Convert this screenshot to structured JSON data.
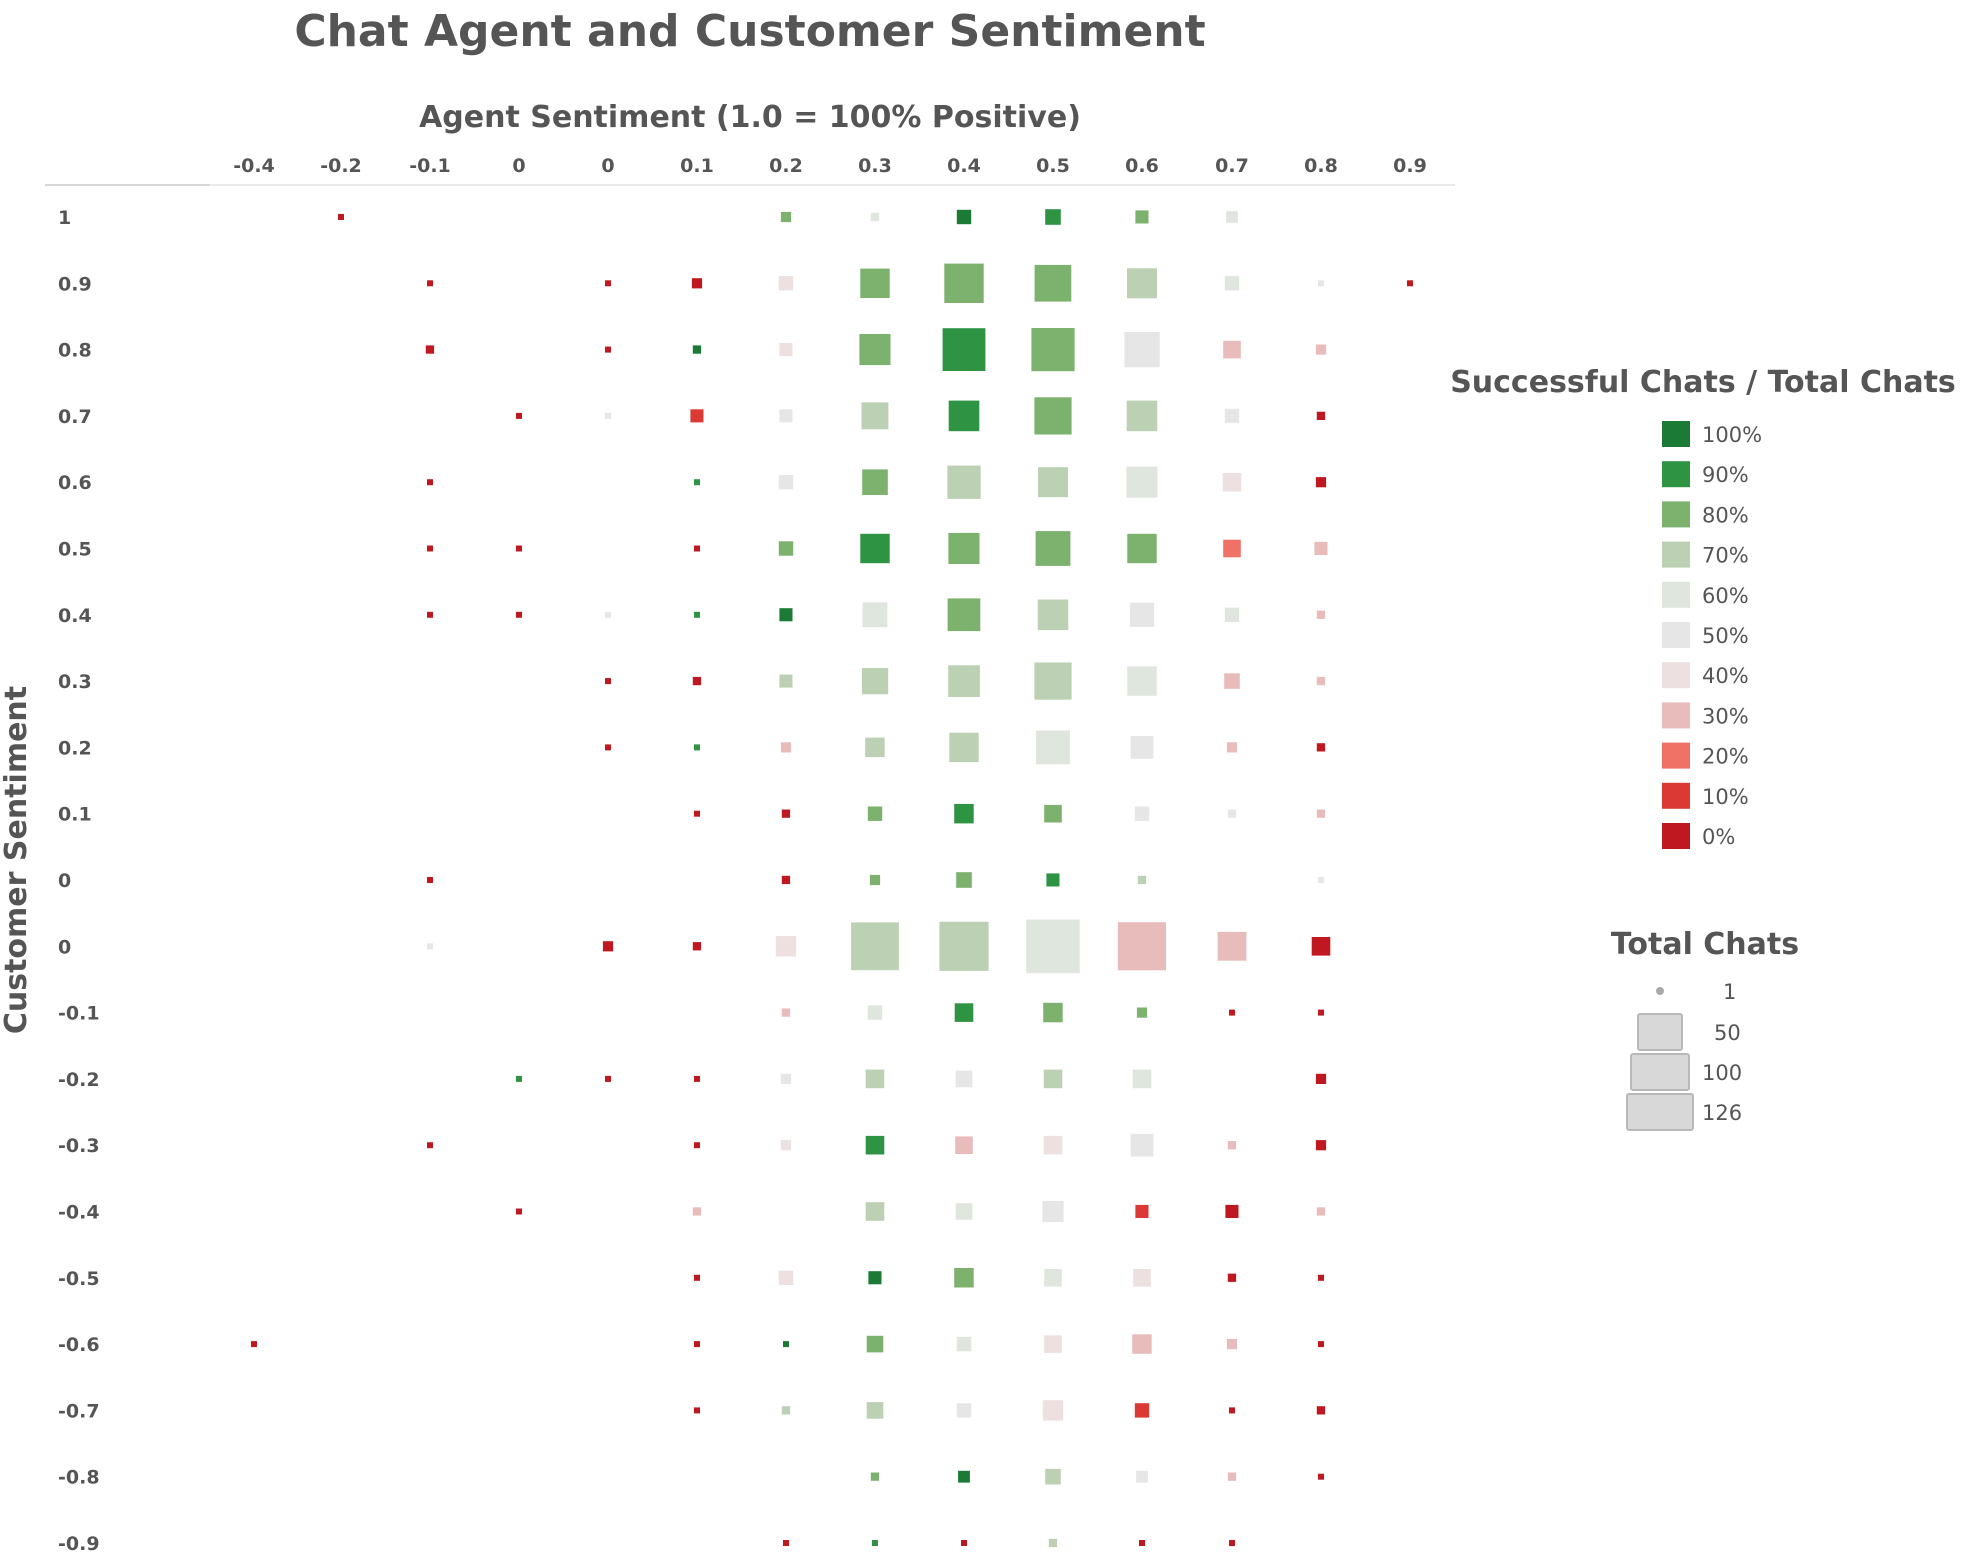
{
  "colors": {
    "100": "#1b7a36",
    "90": "#2e9444",
    "80": "#7cb16e",
    "70": "#bcd1b4",
    "60": "#dfe6dd",
    "50": "#e6e6e6",
    "40": "#ece0e0",
    "30": "#e9bcbc",
    "20": "#f07266",
    "10": "#da3a33",
    "0": "#c01820",
    "title": "#555555",
    "axis_line": "#d0d0d0",
    "legend_size": "#d8d8d8"
  },
  "chart_data": {
    "type": "heatmap",
    "title": "Chat Agent and Customer Sentiment",
    "xlabel": "Agent Sentiment (1.0 = 100% Positive)",
    "ylabel": "Customer Sentiment",
    "x_categories": [
      "-0.4",
      "-0.2",
      "-0.1",
      "0",
      "0",
      "0.1",
      "0.2",
      "0.3",
      "0.4",
      "0.5",
      "0.6",
      "0.7",
      "0.8",
      "0.9"
    ],
    "y_categories": [
      "1",
      "0.9",
      "0.8",
      "0.7",
      "0.6",
      "0.5",
      "0.4",
      "0.3",
      "0.2",
      "0.1",
      "0",
      "0",
      "-0.1",
      "-0.2",
      "-0.3",
      "-0.4",
      "-0.5",
      "-0.6",
      "-0.7",
      "-0.8",
      "-0.9"
    ],
    "color_metric": "Successful Chats / Total Chats",
    "size_metric": "Total Chats",
    "color_legend": [
      "100%",
      "90%",
      "80%",
      "70%",
      "60%",
      "50%",
      "40%",
      "30%",
      "20%",
      "10%",
      "0%"
    ],
    "size_legend": [
      {
        "label": "1",
        "value": 1
      },
      {
        "label": "50",
        "value": 50
      },
      {
        "label": "100",
        "value": 100
      },
      {
        "label": "126",
        "value": 126
      }
    ],
    "cells": [
      {
        "x": 1,
        "y": 0,
        "total": 1,
        "success_pct": 0
      },
      {
        "x": 6,
        "y": 0,
        "total": 3,
        "success_pct": 80
      },
      {
        "x": 7,
        "y": 0,
        "total": 2,
        "success_pct": 60
      },
      {
        "x": 8,
        "y": 0,
        "total": 6,
        "success_pct": 100
      },
      {
        "x": 9,
        "y": 0,
        "total": 7,
        "success_pct": 90
      },
      {
        "x": 10,
        "y": 0,
        "total": 5,
        "success_pct": 80
      },
      {
        "x": 11,
        "y": 0,
        "total": 4,
        "success_pct": 60
      },
      {
        "x": 2,
        "y": 1,
        "total": 1,
        "success_pct": 0
      },
      {
        "x": 4,
        "y": 1,
        "total": 1,
        "success_pct": 0
      },
      {
        "x": 5,
        "y": 1,
        "total": 3,
        "success_pct": 0
      },
      {
        "x": 6,
        "y": 1,
        "total": 6,
        "success_pct": 40
      },
      {
        "x": 7,
        "y": 1,
        "total": 25,
        "success_pct": 80
      },
      {
        "x": 8,
        "y": 1,
        "total": 45,
        "success_pct": 80
      },
      {
        "x": 9,
        "y": 1,
        "total": 39,
        "success_pct": 80
      },
      {
        "x": 10,
        "y": 1,
        "total": 26,
        "success_pct": 70
      },
      {
        "x": 11,
        "y": 1,
        "total": 6,
        "success_pct": 60
      },
      {
        "x": 12,
        "y": 1,
        "total": 1,
        "success_pct": 50
      },
      {
        "x": 13,
        "y": 1,
        "total": 1,
        "success_pct": 0
      },
      {
        "x": 2,
        "y": 2,
        "total": 2,
        "success_pct": 0
      },
      {
        "x": 4,
        "y": 2,
        "total": 1,
        "success_pct": 0
      },
      {
        "x": 5,
        "y": 2,
        "total": 2,
        "success_pct": 100
      },
      {
        "x": 6,
        "y": 2,
        "total": 5,
        "success_pct": 40
      },
      {
        "x": 7,
        "y": 2,
        "total": 28,
        "success_pct": 80
      },
      {
        "x": 8,
        "y": 2,
        "total": 53,
        "success_pct": 90
      },
      {
        "x": 9,
        "y": 2,
        "total": 54,
        "success_pct": 80
      },
      {
        "x": 10,
        "y": 2,
        "total": 36,
        "success_pct": 50
      },
      {
        "x": 11,
        "y": 2,
        "total": 9,
        "success_pct": 30
      },
      {
        "x": 12,
        "y": 2,
        "total": 3,
        "success_pct": 30
      },
      {
        "x": 3,
        "y": 3,
        "total": 1,
        "success_pct": 0
      },
      {
        "x": 4,
        "y": 3,
        "total": 1,
        "success_pct": 50
      },
      {
        "x": 5,
        "y": 3,
        "total": 5,
        "success_pct": 10
      },
      {
        "x": 6,
        "y": 3,
        "total": 5,
        "success_pct": 50
      },
      {
        "x": 7,
        "y": 3,
        "total": 21,
        "success_pct": 70
      },
      {
        "x": 8,
        "y": 3,
        "total": 27,
        "success_pct": 90
      },
      {
        "x": 9,
        "y": 3,
        "total": 40,
        "success_pct": 80
      },
      {
        "x": 10,
        "y": 3,
        "total": 27,
        "success_pct": 70
      },
      {
        "x": 11,
        "y": 3,
        "total": 6,
        "success_pct": 50
      },
      {
        "x": 12,
        "y": 3,
        "total": 2,
        "success_pct": 0
      },
      {
        "x": 2,
        "y": 4,
        "total": 1,
        "success_pct": 0
      },
      {
        "x": 5,
        "y": 4,
        "total": 1,
        "success_pct": 90
      },
      {
        "x": 6,
        "y": 4,
        "total": 6,
        "success_pct": 50
      },
      {
        "x": 7,
        "y": 4,
        "total": 19,
        "success_pct": 80
      },
      {
        "x": 8,
        "y": 4,
        "total": 32,
        "success_pct": 70
      },
      {
        "x": 9,
        "y": 4,
        "total": 26,
        "success_pct": 70
      },
      {
        "x": 10,
        "y": 4,
        "total": 28,
        "success_pct": 60
      },
      {
        "x": 11,
        "y": 4,
        "total": 10,
        "success_pct": 40
      },
      {
        "x": 12,
        "y": 4,
        "total": 3,
        "success_pct": 0
      },
      {
        "x": 2,
        "y": 5,
        "total": 1,
        "success_pct": 0
      },
      {
        "x": 3,
        "y": 5,
        "total": 1,
        "success_pct": 0
      },
      {
        "x": 5,
        "y": 5,
        "total": 1,
        "success_pct": 0
      },
      {
        "x": 6,
        "y": 5,
        "total": 6,
        "success_pct": 80
      },
      {
        "x": 7,
        "y": 5,
        "total": 25,
        "success_pct": 90
      },
      {
        "x": 8,
        "y": 5,
        "total": 28,
        "success_pct": 80
      },
      {
        "x": 9,
        "y": 5,
        "total": 35,
        "success_pct": 80
      },
      {
        "x": 10,
        "y": 5,
        "total": 25,
        "success_pct": 80
      },
      {
        "x": 11,
        "y": 5,
        "total": 9,
        "success_pct": 20
      },
      {
        "x": 12,
        "y": 5,
        "total": 5,
        "success_pct": 30
      },
      {
        "x": 2,
        "y": 6,
        "total": 1,
        "success_pct": 0
      },
      {
        "x": 3,
        "y": 6,
        "total": 1,
        "success_pct": 0
      },
      {
        "x": 4,
        "y": 6,
        "total": 1,
        "success_pct": 50
      },
      {
        "x": 5,
        "y": 6,
        "total": 1,
        "success_pct": 90
      },
      {
        "x": 6,
        "y": 6,
        "total": 5,
        "success_pct": 100
      },
      {
        "x": 7,
        "y": 6,
        "total": 18,
        "success_pct": 60
      },
      {
        "x": 8,
        "y": 6,
        "total": 31,
        "success_pct": 80
      },
      {
        "x": 9,
        "y": 6,
        "total": 27,
        "success_pct": 70
      },
      {
        "x": 10,
        "y": 6,
        "total": 17,
        "success_pct": 50
      },
      {
        "x": 11,
        "y": 6,
        "total": 6,
        "success_pct": 60
      },
      {
        "x": 12,
        "y": 6,
        "total": 2,
        "success_pct": 30
      },
      {
        "x": 4,
        "y": 7,
        "total": 1,
        "success_pct": 0
      },
      {
        "x": 5,
        "y": 7,
        "total": 2,
        "success_pct": 0
      },
      {
        "x": 6,
        "y": 7,
        "total": 5,
        "success_pct": 70
      },
      {
        "x": 7,
        "y": 7,
        "total": 20,
        "success_pct": 70
      },
      {
        "x": 8,
        "y": 7,
        "total": 29,
        "success_pct": 70
      },
      {
        "x": 9,
        "y": 7,
        "total": 40,
        "success_pct": 70
      },
      {
        "x": 10,
        "y": 7,
        "total": 25,
        "success_pct": 60
      },
      {
        "x": 11,
        "y": 7,
        "total": 7,
        "success_pct": 30
      },
      {
        "x": 12,
        "y": 7,
        "total": 2,
        "success_pct": 30
      },
      {
        "x": 4,
        "y": 8,
        "total": 1,
        "success_pct": 0
      },
      {
        "x": 5,
        "y": 8,
        "total": 1,
        "success_pct": 90
      },
      {
        "x": 6,
        "y": 8,
        "total": 3,
        "success_pct": 30
      },
      {
        "x": 7,
        "y": 8,
        "total": 11,
        "success_pct": 70
      },
      {
        "x": 8,
        "y": 8,
        "total": 25,
        "success_pct": 70
      },
      {
        "x": 9,
        "y": 8,
        "total": 33,
        "success_pct": 60
      },
      {
        "x": 10,
        "y": 8,
        "total": 15,
        "success_pct": 50
      },
      {
        "x": 11,
        "y": 8,
        "total": 3,
        "success_pct": 30
      },
      {
        "x": 12,
        "y": 8,
        "total": 2,
        "success_pct": 0
      },
      {
        "x": 5,
        "y": 9,
        "total": 1,
        "success_pct": 0
      },
      {
        "x": 6,
        "y": 9,
        "total": 2,
        "success_pct": 0
      },
      {
        "x": 7,
        "y": 9,
        "total": 6,
        "success_pct": 80
      },
      {
        "x": 8,
        "y": 9,
        "total": 11,
        "success_pct": 90
      },
      {
        "x": 9,
        "y": 9,
        "total": 9,
        "success_pct": 80
      },
      {
        "x": 10,
        "y": 9,
        "total": 6,
        "success_pct": 50
      },
      {
        "x": 11,
        "y": 9,
        "total": 2,
        "success_pct": 50
      },
      {
        "x": 12,
        "y": 9,
        "total": 2,
        "success_pct": 30
      },
      {
        "x": 2,
        "y": 10,
        "total": 1,
        "success_pct": 0
      },
      {
        "x": 6,
        "y": 10,
        "total": 2,
        "success_pct": 0
      },
      {
        "x": 7,
        "y": 10,
        "total": 3,
        "success_pct": 80
      },
      {
        "x": 8,
        "y": 10,
        "total": 7,
        "success_pct": 80
      },
      {
        "x": 9,
        "y": 10,
        "total": 5,
        "success_pct": 90
      },
      {
        "x": 10,
        "y": 10,
        "total": 2,
        "success_pct": 70
      },
      {
        "x": 12,
        "y": 10,
        "total": 1,
        "success_pct": 50
      },
      {
        "x": 2,
        "y": 11,
        "total": 1,
        "success_pct": 50
      },
      {
        "x": 4,
        "y": 11,
        "total": 3,
        "success_pct": 0
      },
      {
        "x": 5,
        "y": 11,
        "total": 2,
        "success_pct": 0
      },
      {
        "x": 6,
        "y": 11,
        "total": 12,
        "success_pct": 40
      },
      {
        "x": 7,
        "y": 11,
        "total": 66,
        "success_pct": 70
      },
      {
        "x": 8,
        "y": 11,
        "total": 70,
        "success_pct": 70
      },
      {
        "x": 9,
        "y": 11,
        "total": 83,
        "success_pct": 60
      },
      {
        "x": 10,
        "y": 11,
        "total": 67,
        "success_pct": 30
      },
      {
        "x": 11,
        "y": 11,
        "total": 24,
        "success_pct": 30
      },
      {
        "x": 12,
        "y": 11,
        "total": 10,
        "success_pct": 0
      },
      {
        "x": 6,
        "y": 12,
        "total": 2,
        "success_pct": 30
      },
      {
        "x": 7,
        "y": 12,
        "total": 6,
        "success_pct": 60
      },
      {
        "x": 8,
        "y": 12,
        "total": 10,
        "success_pct": 90
      },
      {
        "x": 9,
        "y": 12,
        "total": 11,
        "success_pct": 80
      },
      {
        "x": 10,
        "y": 12,
        "total": 3,
        "success_pct": 80
      },
      {
        "x": 11,
        "y": 12,
        "total": 1,
        "success_pct": 0
      },
      {
        "x": 12,
        "y": 12,
        "total": 1,
        "success_pct": 0
      },
      {
        "x": 3,
        "y": 13,
        "total": 1,
        "success_pct": 90
      },
      {
        "x": 4,
        "y": 13,
        "total": 1,
        "success_pct": 0
      },
      {
        "x": 5,
        "y": 13,
        "total": 1,
        "success_pct": 0
      },
      {
        "x": 6,
        "y": 13,
        "total": 3,
        "success_pct": 50
      },
      {
        "x": 7,
        "y": 13,
        "total": 10,
        "success_pct": 70
      },
      {
        "x": 8,
        "y": 13,
        "total": 8,
        "success_pct": 50
      },
      {
        "x": 9,
        "y": 13,
        "total": 10,
        "success_pct": 70
      },
      {
        "x": 10,
        "y": 13,
        "total": 10,
        "success_pct": 60
      },
      {
        "x": 12,
        "y": 13,
        "total": 3,
        "success_pct": 0
      },
      {
        "x": 2,
        "y": 14,
        "total": 1,
        "success_pct": 0
      },
      {
        "x": 5,
        "y": 14,
        "total": 1,
        "success_pct": 0
      },
      {
        "x": 6,
        "y": 14,
        "total": 3,
        "success_pct": 40
      },
      {
        "x": 7,
        "y": 14,
        "total": 10,
        "success_pct": 90
      },
      {
        "x": 8,
        "y": 14,
        "total": 9,
        "success_pct": 30
      },
      {
        "x": 9,
        "y": 14,
        "total": 10,
        "success_pct": 40
      },
      {
        "x": 10,
        "y": 14,
        "total": 15,
        "success_pct": 50
      },
      {
        "x": 11,
        "y": 14,
        "total": 2,
        "success_pct": 30
      },
      {
        "x": 12,
        "y": 14,
        "total": 3,
        "success_pct": 0
      },
      {
        "x": 3,
        "y": 15,
        "total": 1,
        "success_pct": 0
      },
      {
        "x": 5,
        "y": 15,
        "total": 2,
        "success_pct": 30
      },
      {
        "x": 7,
        "y": 15,
        "total": 10,
        "success_pct": 70
      },
      {
        "x": 8,
        "y": 15,
        "total": 8,
        "success_pct": 60
      },
      {
        "x": 9,
        "y": 15,
        "total": 13,
        "success_pct": 50
      },
      {
        "x": 10,
        "y": 15,
        "total": 5,
        "success_pct": 10
      },
      {
        "x": 11,
        "y": 15,
        "total": 5,
        "success_pct": 0
      },
      {
        "x": 12,
        "y": 15,
        "total": 2,
        "success_pct": 30
      },
      {
        "x": 5,
        "y": 16,
        "total": 1,
        "success_pct": 0
      },
      {
        "x": 6,
        "y": 16,
        "total": 6,
        "success_pct": 40
      },
      {
        "x": 7,
        "y": 16,
        "total": 5,
        "success_pct": 100
      },
      {
        "x": 8,
        "y": 16,
        "total": 11,
        "success_pct": 80
      },
      {
        "x": 9,
        "y": 16,
        "total": 9,
        "success_pct": 60
      },
      {
        "x": 10,
        "y": 16,
        "total": 9,
        "success_pct": 40
      },
      {
        "x": 11,
        "y": 16,
        "total": 2,
        "success_pct": 0
      },
      {
        "x": 12,
        "y": 16,
        "total": 1,
        "success_pct": 0
      },
      {
        "x": 0,
        "y": 17,
        "total": 1,
        "success_pct": 0
      },
      {
        "x": 5,
        "y": 17,
        "total": 1,
        "success_pct": 0
      },
      {
        "x": 6,
        "y": 17,
        "total": 1,
        "success_pct": 100
      },
      {
        "x": 7,
        "y": 17,
        "total": 8,
        "success_pct": 80
      },
      {
        "x": 8,
        "y": 17,
        "total": 6,
        "success_pct": 60
      },
      {
        "x": 9,
        "y": 17,
        "total": 9,
        "success_pct": 40
      },
      {
        "x": 10,
        "y": 17,
        "total": 11,
        "success_pct": 30
      },
      {
        "x": 11,
        "y": 17,
        "total": 3,
        "success_pct": 30
      },
      {
        "x": 12,
        "y": 17,
        "total": 1,
        "success_pct": 0
      },
      {
        "x": 5,
        "y": 18,
        "total": 1,
        "success_pct": 0
      },
      {
        "x": 6,
        "y": 18,
        "total": 2,
        "success_pct": 70
      },
      {
        "x": 7,
        "y": 18,
        "total": 8,
        "success_pct": 70
      },
      {
        "x": 8,
        "y": 18,
        "total": 6,
        "success_pct": 50
      },
      {
        "x": 9,
        "y": 18,
        "total": 12,
        "success_pct": 40
      },
      {
        "x": 10,
        "y": 18,
        "total": 6,
        "success_pct": 10
      },
      {
        "x": 11,
        "y": 18,
        "total": 1,
        "success_pct": 0
      },
      {
        "x": 12,
        "y": 18,
        "total": 2,
        "success_pct": 0
      },
      {
        "x": 7,
        "y": 19,
        "total": 2,
        "success_pct": 80
      },
      {
        "x": 8,
        "y": 19,
        "total": 4,
        "success_pct": 100
      },
      {
        "x": 9,
        "y": 19,
        "total": 7,
        "success_pct": 70
      },
      {
        "x": 10,
        "y": 19,
        "total": 4,
        "success_pct": 50
      },
      {
        "x": 11,
        "y": 19,
        "total": 2,
        "success_pct": 30
      },
      {
        "x": 12,
        "y": 19,
        "total": 1,
        "success_pct": 0
      },
      {
        "x": 6,
        "y": 20,
        "total": 1,
        "success_pct": 0
      },
      {
        "x": 7,
        "y": 20,
        "total": 1,
        "success_pct": 90
      },
      {
        "x": 8,
        "y": 20,
        "total": 1,
        "success_pct": 0
      },
      {
        "x": 9,
        "y": 20,
        "total": 2,
        "success_pct": 70
      },
      {
        "x": 10,
        "y": 20,
        "total": 1,
        "success_pct": 0
      },
      {
        "x": 11,
        "y": 20,
        "total": 1,
        "success_pct": 0
      }
    ]
  }
}
